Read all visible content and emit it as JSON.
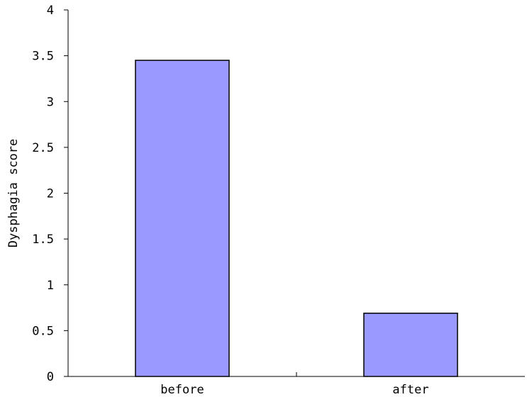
{
  "chart_data": {
    "type": "bar",
    "title": "",
    "xlabel": "",
    "ylabel": "Dysphagia score",
    "categories": [
      "before",
      "after"
    ],
    "series": [
      {
        "values": [
          3.45,
          0.69
        ]
      }
    ],
    "ylim": [
      0,
      4
    ],
    "yticks": [
      0,
      0.5,
      1,
      1.5,
      2,
      2.5,
      3,
      3.5,
      4
    ],
    "ytick_labels": [
      "0",
      "0.5",
      "1",
      "1.5",
      "2",
      "2.5",
      "3",
      "3.5",
      "4"
    ],
    "grid": false,
    "legend": "none",
    "bar_color": "#9999ff",
    "bar_edge_color": "#000000"
  }
}
